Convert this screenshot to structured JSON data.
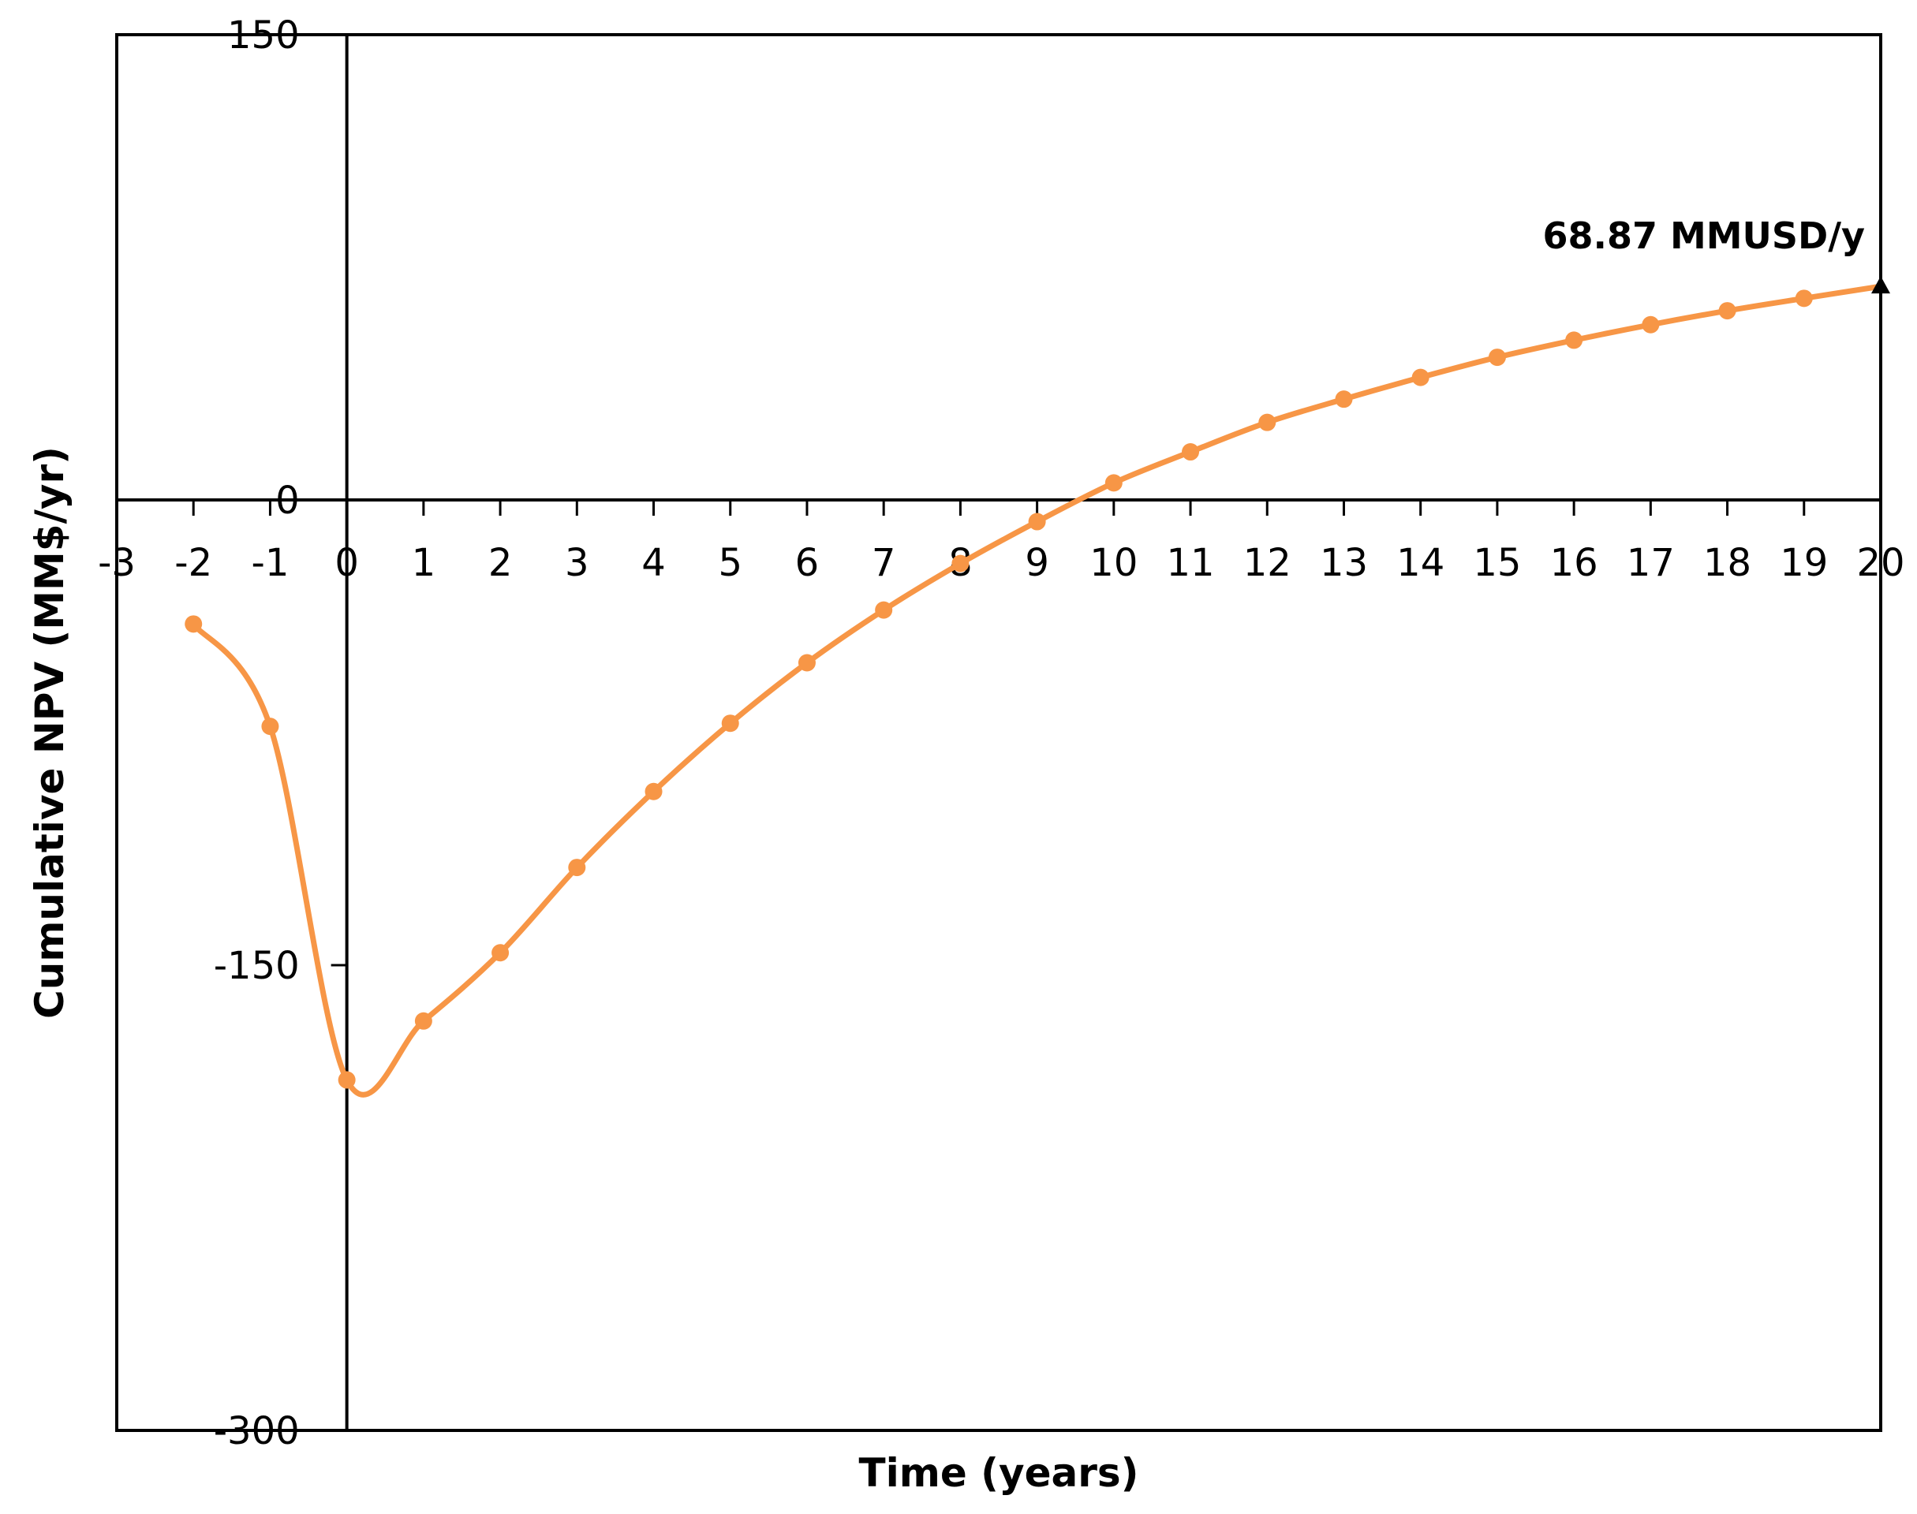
{
  "chart_data": {
    "type": "line",
    "title": "",
    "xlabel": "Time (years)",
    "ylabel": "Cumulative NPV (MM$/yr)",
    "xlim": [
      -3,
      20
    ],
    "ylim": [
      -300,
      150
    ],
    "x_ticks": [
      "-3",
      "-2",
      "-1",
      "0",
      "1",
      "2",
      "3",
      "4",
      "5",
      "6",
      "7",
      "8",
      "9",
      "10",
      "11",
      "12",
      "13",
      "14",
      "15",
      "16",
      "17",
      "18",
      "19",
      "20"
    ],
    "y_ticks": [
      "150",
      "0",
      "-150",
      "-300"
    ],
    "grid": false,
    "legend": "none",
    "series": [
      {
        "color": "#F79646",
        "x": [
          -2,
          -1,
          0,
          1,
          2,
          3,
          4,
          5,
          6,
          7,
          8,
          9,
          10,
          11,
          12,
          13,
          14,
          15,
          16,
          17,
          18,
          19,
          20
        ],
        "y": [
          -40,
          -73,
          -187,
          -168,
          -146,
          -118.5,
          -94,
          -72,
          -52.5,
          -35.5,
          -20.5,
          -7,
          5.5,
          15.5,
          25,
          32.5,
          39.5,
          46,
          51.5,
          56.5,
          61,
          65,
          68.87
        ]
      }
    ],
    "annotation": {
      "text": "68.87 MMUSD/y",
      "x": 20,
      "y": 68.87
    }
  }
}
